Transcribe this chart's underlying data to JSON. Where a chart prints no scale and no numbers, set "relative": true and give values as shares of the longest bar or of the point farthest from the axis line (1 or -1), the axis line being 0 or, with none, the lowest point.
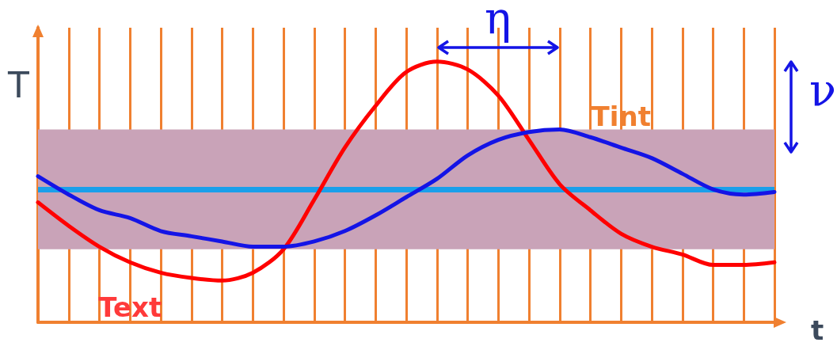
{
  "chart_data": {
    "type": "line",
    "relative": true,
    "xlabel": "t",
    "ylabel": "T",
    "categories": [
      null,
      null,
      null,
      null,
      null,
      null,
      null,
      null,
      null,
      null,
      null,
      null,
      null,
      null,
      null,
      null,
      null,
      null,
      null,
      null,
      null,
      null,
      null,
      null,
      null
    ],
    "series": [
      {
        "name": "Text",
        "color": "#ff0000",
        "values": [
          0.46,
          0.37,
          0.29,
          0.23,
          0.19,
          0.17,
          0.16,
          0.19,
          0.28,
          0.47,
          0.67,
          0.83,
          0.96,
          1.0,
          0.97,
          0.87,
          0.7,
          0.53,
          0.43,
          0.34,
          0.29,
          0.26,
          0.22,
          0.22,
          0.23
        ]
      },
      {
        "name": "Tint",
        "color": "#1414e6",
        "values": [
          0.56,
          0.49,
          0.43,
          0.4,
          0.35,
          0.33,
          0.31,
          0.29,
          0.29,
          0.31,
          0.35,
          0.41,
          0.48,
          0.55,
          0.64,
          0.7,
          0.73,
          0.74,
          0.71,
          0.67,
          0.63,
          0.57,
          0.51,
          0.49,
          0.5
        ]
      }
    ],
    "ref_lines": [
      {
        "axis": "y",
        "value": 0.51,
        "color": "#1a9fea",
        "line_style": "solid"
      }
    ],
    "bands": [
      {
        "axis": "y",
        "from": 0.28,
        "to": 0.74,
        "color": "#c9a3b8"
      }
    ],
    "annotations": [
      "η",
      "ν"
    ],
    "grid": "x",
    "legend": false,
    "marker": "none",
    "line_style": "solid"
  }
}
